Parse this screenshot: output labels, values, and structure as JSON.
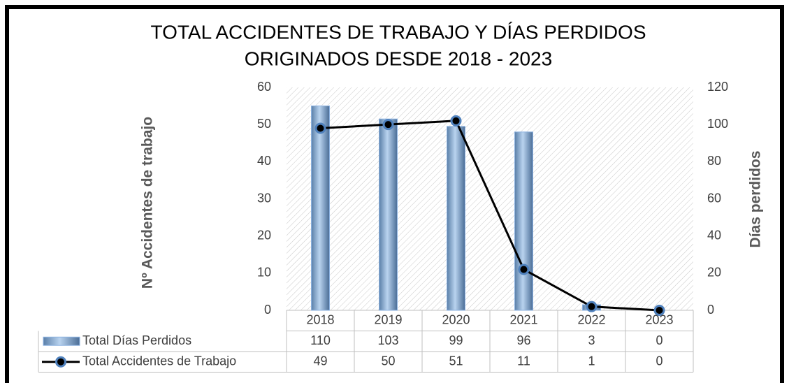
{
  "chart_data": {
    "type": "combo",
    "title": [
      "TOTAL ACCIDENTES DE TRABAJO Y DÍAS PERDIDOS",
      "ORIGINADOS DESDE 2018 - 2023"
    ],
    "ylabel": "Nº Accidentes de trabajo",
    "y2label": "Días perdidos",
    "categories": [
      "2018",
      "2019",
      "2020",
      "2021",
      "2022",
      "2023"
    ],
    "series": [
      {
        "name": "Total Días Perdidos",
        "type": "bar",
        "axis": "y2",
        "color": "#8db3e2",
        "values": [
          110,
          103,
          99,
          96,
          3,
          0
        ]
      },
      {
        "name": "Total Accidentes de Trabajo",
        "type": "line",
        "axis": "y",
        "color": "#000000",
        "marker_color": "#4f81bd",
        "values": [
          49,
          50,
          51,
          11,
          1,
          0
        ]
      }
    ],
    "ylim": [
      0,
      60
    ],
    "yticks": [
      0,
      10,
      20,
      30,
      40,
      50,
      60
    ],
    "y2lim": [
      0,
      120
    ],
    "y2ticks": [
      0,
      20,
      40,
      60,
      80,
      100,
      120
    ]
  }
}
